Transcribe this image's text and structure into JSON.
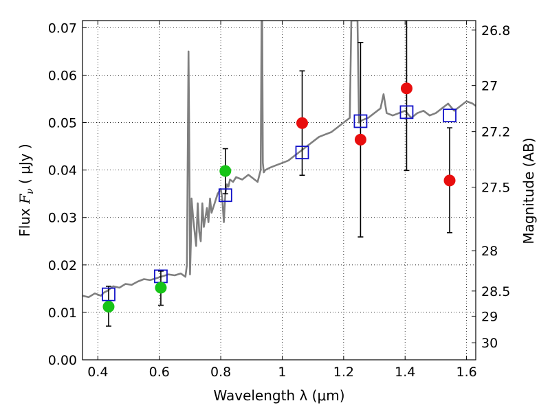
{
  "chart_data": {
    "type": "scatter",
    "title": "",
    "xlabel": "Wavelength  λ (μm)",
    "ylabel_prefix": "Flux  ",
    "ylabel_symbol": "F",
    "ylabel_sub": "ν",
    "ylabel_suffix": "  ( μJy )",
    "y2label": "Magnitude (AB)",
    "xlim": [
      0.35,
      1.63
    ],
    "ylim": [
      0.0,
      0.0715
    ],
    "grid": true,
    "x_ticks": [
      0.4,
      0.6,
      0.8,
      1.0,
      1.2,
      1.4,
      1.6
    ],
    "x_tick_labels": [
      "0.4",
      "0.6",
      "0.8",
      "1",
      "1.2",
      "1.4",
      "1.6"
    ],
    "y_ticks": [
      0.0,
      0.01,
      0.02,
      0.03,
      0.04,
      0.05,
      0.06,
      0.07
    ],
    "y_tick_labels": [
      "0.00",
      "0.01",
      "0.02",
      "0.03",
      "0.04",
      "0.05",
      "0.06",
      "0.07"
    ],
    "y2_ticks": [
      {
        "label": "26.8",
        "flux": 0.0695
      },
      {
        "label": "27",
        "flux": 0.0578
      },
      {
        "label": "27.2",
        "flux": 0.0481
      },
      {
        "label": "27.5",
        "flux": 0.0364
      },
      {
        "label": "28",
        "flux": 0.023
      },
      {
        "label": "28.5",
        "flux": 0.0145
      },
      {
        "label": "29",
        "flux": 0.0092
      },
      {
        "label": "30",
        "flux": 0.0036
      }
    ],
    "colors": {
      "spectrum": "#7f7f7f",
      "green": "#17c417",
      "red": "#e80e0e",
      "model_box": "#1010c8",
      "errorbar": "#000000"
    },
    "spectrum": {
      "x": [
        0.35,
        0.37,
        0.39,
        0.41,
        0.42,
        0.43,
        0.44,
        0.45,
        0.47,
        0.49,
        0.51,
        0.53,
        0.55,
        0.57,
        0.59,
        0.61,
        0.63,
        0.65,
        0.67,
        0.685,
        0.69,
        0.695,
        0.697,
        0.7,
        0.703,
        0.705,
        0.71,
        0.72,
        0.725,
        0.73,
        0.735,
        0.74,
        0.745,
        0.75,
        0.755,
        0.76,
        0.765,
        0.77,
        0.78,
        0.79,
        0.8,
        0.805,
        0.81,
        0.815,
        0.82,
        0.825,
        0.83,
        0.84,
        0.85,
        0.87,
        0.89,
        0.91,
        0.92,
        0.93,
        0.933,
        0.935,
        0.937,
        0.94,
        0.945,
        0.96,
        0.98,
        1.0,
        1.02,
        1.04,
        1.06,
        1.08,
        1.1,
        1.12,
        1.14,
        1.16,
        1.18,
        1.2,
        1.22,
        1.225,
        1.23,
        1.235,
        1.24,
        1.245,
        1.25,
        1.26,
        1.28,
        1.3,
        1.32,
        1.33,
        1.34,
        1.36,
        1.38,
        1.4,
        1.42,
        1.44,
        1.46,
        1.48,
        1.5,
        1.52,
        1.54,
        1.56,
        1.58,
        1.6,
        1.62,
        1.63
      ],
      "y": [
        0.0135,
        0.0132,
        0.014,
        0.0135,
        0.0142,
        0.0145,
        0.015,
        0.0155,
        0.0152,
        0.016,
        0.0158,
        0.0165,
        0.017,
        0.0168,
        0.0172,
        0.0176,
        0.018,
        0.0178,
        0.0182,
        0.0175,
        0.02,
        0.065,
        0.05,
        0.018,
        0.025,
        0.034,
        0.03,
        0.024,
        0.033,
        0.027,
        0.025,
        0.033,
        0.028,
        0.03,
        0.032,
        0.029,
        0.034,
        0.031,
        0.033,
        0.035,
        0.036,
        0.034,
        0.029,
        0.035,
        0.037,
        0.0365,
        0.038,
        0.0375,
        0.0385,
        0.038,
        0.039,
        0.038,
        0.0375,
        0.04,
        0.0715,
        0.0715,
        0.0415,
        0.0395,
        0.04,
        0.0405,
        0.041,
        0.0415,
        0.042,
        0.043,
        0.044,
        0.045,
        0.046,
        0.047,
        0.0475,
        0.048,
        0.049,
        0.05,
        0.051,
        0.0715,
        0.0715,
        0.0715,
        0.0715,
        0.0715,
        0.05,
        0.0505,
        0.051,
        0.052,
        0.053,
        0.056,
        0.052,
        0.0515,
        0.052,
        0.0525,
        0.051,
        0.052,
        0.0525,
        0.0515,
        0.052,
        0.053,
        0.054,
        0.0525,
        0.0535,
        0.0545,
        0.054,
        0.0535
      ]
    },
    "series": [
      {
        "marker": "circle",
        "color": "green",
        "points": [
          {
            "x": 0.435,
            "y": 0.0112,
            "ylo": 0.0071,
            "yhi": 0.0155
          },
          {
            "x": 0.605,
            "y": 0.0152,
            "ylo": 0.0115,
            "yhi": 0.0187
          },
          {
            "x": 0.815,
            "y": 0.0398,
            "ylo": 0.035,
            "yhi": 0.0445
          }
        ]
      },
      {
        "marker": "circle",
        "color": "red",
        "points": [
          {
            "x": 1.065,
            "y": 0.0499,
            "ylo": 0.0389,
            "yhi": 0.0609
          },
          {
            "x": 1.255,
            "y": 0.0464,
            "ylo": 0.0259,
            "yhi": 0.0669
          },
          {
            "x": 1.405,
            "y": 0.0572,
            "ylo": 0.0399,
            "yhi": 0.0745
          },
          {
            "x": 1.545,
            "y": 0.0378,
            "ylo": 0.0268,
            "yhi": 0.0489
          }
        ]
      },
      {
        "marker": "square",
        "color": "model_box",
        "points": [
          {
            "x": 0.435,
            "y": 0.0138
          },
          {
            "x": 0.605,
            "y": 0.0176
          },
          {
            "x": 0.815,
            "y": 0.0347
          },
          {
            "x": 1.065,
            "y": 0.0437
          },
          {
            "x": 1.255,
            "y": 0.0503
          },
          {
            "x": 1.405,
            "y": 0.0522
          },
          {
            "x": 1.545,
            "y": 0.0515
          }
        ]
      }
    ]
  }
}
